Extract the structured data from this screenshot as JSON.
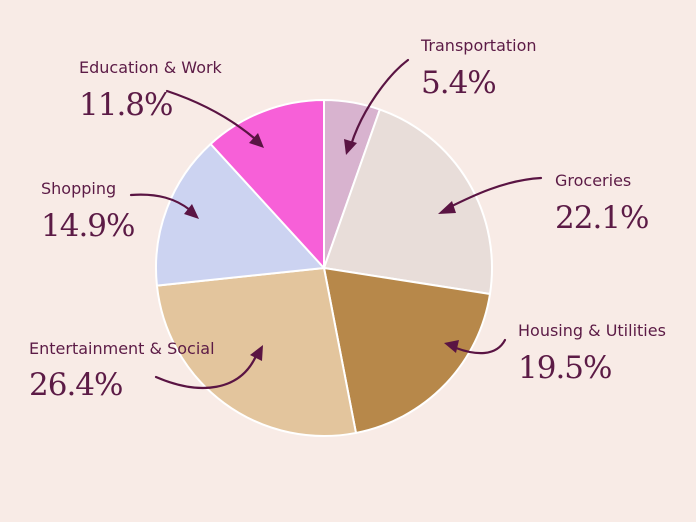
{
  "chart_data": {
    "type": "pie",
    "title": "",
    "slices": [
      {
        "label": "Transportation",
        "value": 5.4,
        "display": "5.4%",
        "color": "#d8b3cf"
      },
      {
        "label": "Groceries",
        "value": 22.1,
        "display": "22.1%",
        "color": "#e8ddd9"
      },
      {
        "label": "Housing & Utilities",
        "value": 19.5,
        "display": "19.5%",
        "color": "#b7884a"
      },
      {
        "label": "Entertainment & Social",
        "value": 26.4,
        "display": "26.4%",
        "color": "#e3c59d"
      },
      {
        "label": "Shopping",
        "value": 14.9,
        "display": "14.9%",
        "color": "#ccd3f1"
      },
      {
        "label": "Education & Work",
        "value": 11.8,
        "display": "11.8%",
        "color": "#f760d8"
      }
    ],
    "start_angle": "top",
    "direction": "clockwise",
    "legend": "none"
  },
  "colors": {
    "background": "#f8ebe6",
    "text": "#5c1b46",
    "arrow": "#5a1443",
    "slice_border": "#ffffff"
  }
}
